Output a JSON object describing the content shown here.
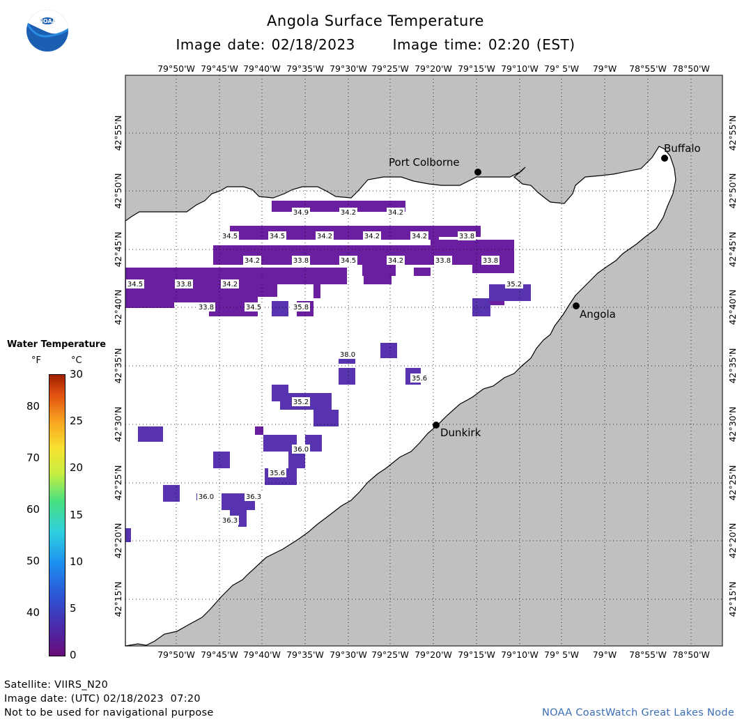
{
  "header": {
    "title": "Angola Surface Temperature",
    "image_date": "Image date: 02/18/2023",
    "image_time": "Image time: 02:20 (EST)"
  },
  "logo": {
    "text": "NOAA"
  },
  "map": {
    "lon_labels": [
      "79°50'W",
      "79°45'W",
      "79°40'W",
      "79°35'W",
      "79°30'W",
      "79°25'W",
      "79°20'W",
      "79°15'W",
      "79°10'W",
      "79° 5'W",
      "79°W",
      "78°55'W",
      "78°50'W"
    ],
    "lat_labels": [
      "42°55'N",
      "42°50'N",
      "42°45'N",
      "42°40'N",
      "42°35'N",
      "42°30'N",
      "42°25'N",
      "42°20'N",
      "42°15'N"
    ],
    "cities": [
      {
        "name": "Port Colborne"
      },
      {
        "name": "Buffalo"
      },
      {
        "name": "Angola"
      },
      {
        "name": "Dunkirk"
      }
    ],
    "temperature_labels": [
      "34.9",
      "34.2",
      "34.2",
      "34.5",
      "34.5",
      "34.2",
      "34.2",
      "34.2",
      "33.8",
      "34.2",
      "33.8",
      "34.5",
      "34.2",
      "33.8",
      "33.8",
      "34.5",
      "33.8",
      "34.2",
      "35.2",
      "33.8",
      "34.5",
      "35.8",
      "38.0",
      "35.6",
      "35.2",
      "36.0",
      "35.6",
      "36.0",
      "36.3",
      "36.3"
    ],
    "colors": {
      "land": "#c0c0c0",
      "water": "#ffffff",
      "cold_purple": "#6a1fa0",
      "blue_purple": "#5733b0"
    }
  },
  "legend": {
    "title": "Water Temperature",
    "unit_f": "°F",
    "unit_c": "°C",
    "f_ticks": [
      "80",
      "70",
      "60",
      "50",
      "40"
    ],
    "c_ticks": [
      "30",
      "25",
      "20",
      "15",
      "10",
      "5",
      "0"
    ]
  },
  "footer": {
    "satellite": "Satellite: VIIRS_N20",
    "utc_date": "Image date: (UTC) 02/18/2023  07:20",
    "disclaimer": "Not to be used for navigational purpose",
    "credit": "NOAA CoastWatch Great Lakes Node"
  }
}
